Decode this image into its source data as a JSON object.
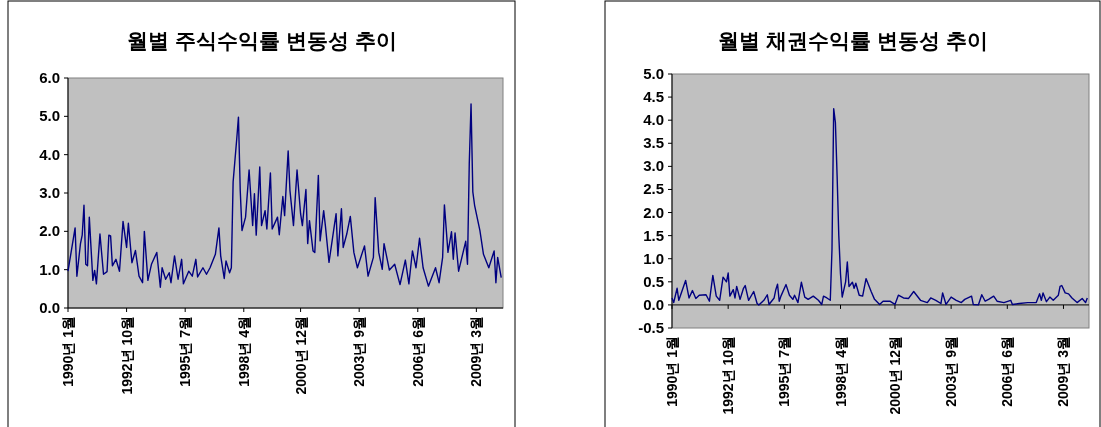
{
  "chart_data": [
    {
      "type": "line",
      "title": "월별 주식수익률 변동성 추이",
      "color": "#000080",
      "x": [
        "1990-01",
        "1990-05",
        "1990-06",
        "1990-08",
        "1990-09",
        "1990-10",
        "1990-11",
        "1990-12",
        "1991-01",
        "1991-03",
        "1991-04",
        "1991-05",
        "1991-07",
        "1991-09",
        "1991-11",
        "1991-12",
        "1992-01",
        "1992-02",
        "1992-04",
        "1992-06",
        "1992-08",
        "1992-10",
        "1992-11",
        "1993-01",
        "1993-03",
        "1993-05",
        "1993-07",
        "1993-08",
        "1993-10",
        "1993-12",
        "1994-03",
        "1994-05",
        "1994-06",
        "1994-08",
        "1994-10",
        "1994-11",
        "1995-01",
        "1995-03",
        "1995-05",
        "1995-06",
        "1995-09",
        "1995-11",
        "1996-01",
        "1996-02",
        "1996-05",
        "1996-07",
        "1996-09",
        "1996-12",
        "1997-02",
        "1997-03",
        "1997-05",
        "1997-06",
        "1997-08",
        "1997-09",
        "1997-10",
        "1997-12",
        "1998-01",
        "1998-02",
        "1998-03",
        "1998-05",
        "1998-07",
        "1998-09",
        "1998-10",
        "1998-11",
        "1999-01",
        "1999-02",
        "1999-04",
        "1999-05",
        "1999-07",
        "1999-08",
        "1999-11",
        "1999-12",
        "2000-02",
        "2000-03",
        "2000-05",
        "2000-06",
        "2000-08",
        "2000-10",
        "2000-12",
        "2001-01",
        "2001-03",
        "2001-04",
        "2001-05",
        "2001-07",
        "2001-08",
        "2001-10",
        "2001-11",
        "2002-01",
        "2002-02",
        "2002-04",
        "2002-07",
        "2002-08",
        "2002-09",
        "2002-11",
        "2002-12",
        "2003-02",
        "2003-04",
        "2003-06",
        "2003-08",
        "2003-12",
        "2004-02",
        "2004-05",
        "2004-06",
        "2004-08",
        "2004-10",
        "2004-11",
        "2005-02",
        "2005-05",
        "2005-08",
        "2005-11",
        "2006-01",
        "2006-03",
        "2006-05",
        "2006-07",
        "2006-09",
        "2006-12",
        "2007-04",
        "2007-06",
        "2007-08",
        "2007-09",
        "2007-11",
        "2008-01",
        "2008-02",
        "2008-03",
        "2008-05",
        "2008-09",
        "2008-10",
        "2008-11",
        "2008-12",
        "2009-01",
        "2009-02",
        "2009-05",
        "2009-07",
        "2009-10",
        "2010-01",
        "2010-02",
        "2010-03",
        "2010-05"
      ],
      "values": [
        0.96,
        2.09,
        0.83,
        1.67,
        1.9,
        2.68,
        1.14,
        1.1,
        2.37,
        0.72,
        0.98,
        0.63,
        1.93,
        0.88,
        0.95,
        1.9,
        1.88,
        1.1,
        1.27,
        0.96,
        2.26,
        1.58,
        2.21,
        1.18,
        1.5,
        0.83,
        0.66,
        2.0,
        0.72,
        1.14,
        1.45,
        0.54,
        1.05,
        0.75,
        0.92,
        0.66,
        1.36,
        0.75,
        1.27,
        0.63,
        0.96,
        0.83,
        1.27,
        0.81,
        1.05,
        0.88,
        1.05,
        1.4,
        2.09,
        1.36,
        0.77,
        1.23,
        0.92,
        1.05,
        3.29,
        4.39,
        4.98,
        3.07,
        2.02,
        2.37,
        3.6,
        2.15,
        2.98,
        1.9,
        3.68,
        2.15,
        2.54,
        2.06,
        3.52,
        2.06,
        2.37,
        1.91,
        2.91,
        2.41,
        4.1,
        3.07,
        2.15,
        3.6,
        2.46,
        2.15,
        3.09,
        1.68,
        2.28,
        1.49,
        1.45,
        3.46,
        1.75,
        2.54,
        2.13,
        1.19,
        2.15,
        2.46,
        1.36,
        2.59,
        1.58,
        1.93,
        2.39,
        1.45,
        1.05,
        1.62,
        0.83,
        1.32,
        2.88,
        1.45,
        1.01,
        1.68,
        0.99,
        1.14,
        0.61,
        1.25,
        0.63,
        1.49,
        1.05,
        1.82,
        1.05,
        0.57,
        1.05,
        0.66,
        1.32,
        2.69,
        1.45,
        1.99,
        1.27,
        1.96,
        0.96,
        1.74,
        1.14,
        3.77,
        5.32,
        3.03,
        2.68,
        2.02,
        1.4,
        1.05,
        1.49,
        0.66,
        1.32,
        0.79
      ],
      "xlim": [
        "1990-01",
        "2010-06"
      ],
      "xticks": [
        {
          "value": "1990-01",
          "label": "1990년 1월"
        },
        {
          "value": "1992-10",
          "label": "1992년 10월"
        },
        {
          "value": "1995-07",
          "label": "1995년 7월"
        },
        {
          "value": "1998-04",
          "label": "1998년 4월"
        },
        {
          "value": "2000-12",
          "label": "2000년 12월"
        },
        {
          "value": "2003-09",
          "label": "2003년 9월"
        },
        {
          "value": "2006-06",
          "label": "2006년 6월"
        },
        {
          "value": "2009-03",
          "label": "2009년 3월"
        }
      ],
      "ylim": [
        0,
        6
      ],
      "yticks": [
        {
          "value": 0,
          "label": "0.0"
        },
        {
          "value": 1,
          "label": "1.0"
        },
        {
          "value": 2,
          "label": "2.0"
        },
        {
          "value": 3,
          "label": "3.0"
        },
        {
          "value": 4,
          "label": "4.0"
        },
        {
          "value": 5,
          "label": "5.0"
        },
        {
          "value": 6,
          "label": "6.0"
        }
      ]
    },
    {
      "type": "line",
      "title": "월별 채권수익률 변동성 추이",
      "color": "#000080",
      "x": [
        "1990-01",
        "1990-02",
        "1990-04",
        "1990-05",
        "1990-09",
        "1990-11",
        "1991-01",
        "1991-03",
        "1991-05",
        "1991-09",
        "1991-11",
        "1992-01",
        "1992-03",
        "1992-05",
        "1992-07",
        "1992-09",
        "1992-10",
        "1992-11",
        "1993-01",
        "1993-02",
        "1993-03",
        "1993-05",
        "1993-07",
        "1993-08",
        "1993-10",
        "1994-01",
        "1994-03",
        "1994-04",
        "1994-07",
        "1994-09",
        "1994-10",
        "1995-01",
        "1995-02",
        "1995-03",
        "1995-04",
        "1995-05",
        "1995-08",
        "1995-10",
        "1995-12",
        "1996-01",
        "1996-03",
        "1996-05",
        "1996-07",
        "1996-09",
        "1996-12",
        "1997-03",
        "1997-05",
        "1997-06",
        "1997-08",
        "1997-10",
        "1997-11",
        "1997-12",
        "1998-01",
        "1998-02",
        "1998-03",
        "1998-04",
        "1998-05",
        "1998-07",
        "1998-08",
        "1998-09",
        "1998-11",
        "1998-12",
        "1999-01",
        "1999-03",
        "1999-05",
        "1999-07",
        "1999-10",
        "1999-12",
        "2000-03",
        "2000-05",
        "2000-09",
        "2000-12",
        "2001-02",
        "2001-05",
        "2001-08",
        "2001-11",
        "2002-03",
        "2002-07",
        "2002-09",
        "2002-12",
        "2003-03",
        "2003-04",
        "2003-06",
        "2003-09",
        "2003-12",
        "2004-03",
        "2004-05",
        "2004-09",
        "2004-10",
        "2005-01",
        "2005-03",
        "2005-05",
        "2005-07",
        "2005-10",
        "2005-12",
        "2006-04",
        "2006-08",
        "2006-09",
        "2007-01",
        "2007-06",
        "2007-11",
        "2008-01",
        "2008-02",
        "2008-03",
        "2008-05",
        "2008-07",
        "2008-09",
        "2008-12",
        "2009-01",
        "2009-02",
        "2009-04",
        "2009-06",
        "2009-08",
        "2009-11",
        "2010-02",
        "2010-04",
        "2010-05"
      ],
      "values": [
        0.15,
        0.05,
        0.36,
        0.1,
        0.53,
        0.15,
        0.31,
        0.14,
        0.21,
        0.22,
        0.08,
        0.64,
        0.19,
        0.1,
        0.6,
        0.5,
        0.69,
        0.19,
        0.33,
        0.15,
        0.4,
        0.12,
        0.36,
        0.42,
        0.1,
        0.29,
        0.03,
        0.0,
        0.1,
        0.22,
        0.01,
        0.15,
        0.33,
        0.45,
        0.08,
        0.19,
        0.44,
        0.21,
        0.12,
        0.21,
        0.05,
        0.49,
        0.17,
        0.12,
        0.19,
        0.1,
        0.01,
        0.19,
        0.15,
        0.1,
        1.2,
        4.25,
        3.95,
        2.8,
        1.5,
        0.67,
        0.17,
        0.5,
        0.93,
        0.4,
        0.49,
        0.36,
        0.47,
        0.21,
        0.19,
        0.57,
        0.29,
        0.12,
        0.01,
        0.08,
        0.08,
        0.01,
        0.21,
        0.15,
        0.14,
        0.29,
        0.1,
        0.05,
        0.15,
        0.1,
        0.03,
        0.26,
        0.01,
        0.17,
        0.1,
        0.05,
        0.12,
        0.19,
        0.01,
        0.0,
        0.22,
        0.08,
        0.12,
        0.19,
        0.08,
        0.05,
        0.1,
        0.01,
        0.03,
        0.05,
        0.05,
        0.24,
        0.1,
        0.26,
        0.07,
        0.17,
        0.1,
        0.21,
        0.4,
        0.42,
        0.26,
        0.24,
        0.15,
        0.05,
        0.14,
        0.05,
        0.15
      ],
      "xlim": [
        "1990-01",
        "2010-06"
      ],
      "xticks": [
        {
          "value": "1990-01",
          "label": "1990년 1월"
        },
        {
          "value": "1992-10",
          "label": "1992년 10월"
        },
        {
          "value": "1995-07",
          "label": "1995년 7월"
        },
        {
          "value": "1998-04",
          "label": "1998년 4월"
        },
        {
          "value": "2000-12",
          "label": "2000년 12월"
        },
        {
          "value": "2003-09",
          "label": "2003년 9월"
        },
        {
          "value": "2006-06",
          "label": "2006년 6월"
        },
        {
          "value": "2009-03",
          "label": "2009년 3월"
        }
      ],
      "ylim": [
        -0.5,
        5
      ],
      "yticks": [
        {
          "value": -0.5,
          "label": "-0.5"
        },
        {
          "value": 0,
          "label": "0.0"
        },
        {
          "value": 0.5,
          "label": "0.5"
        },
        {
          "value": 1,
          "label": "1.0"
        },
        {
          "value": 1.5,
          "label": "1.5"
        },
        {
          "value": 2,
          "label": "2.0"
        },
        {
          "value": 2.5,
          "label": "2.5"
        },
        {
          "value": 3,
          "label": "3.0"
        },
        {
          "value": 3.5,
          "label": "3.5"
        },
        {
          "value": 4,
          "label": "4.0"
        },
        {
          "value": 4.5,
          "label": "4.5"
        },
        {
          "value": 5,
          "label": "5.0"
        }
      ]
    }
  ]
}
